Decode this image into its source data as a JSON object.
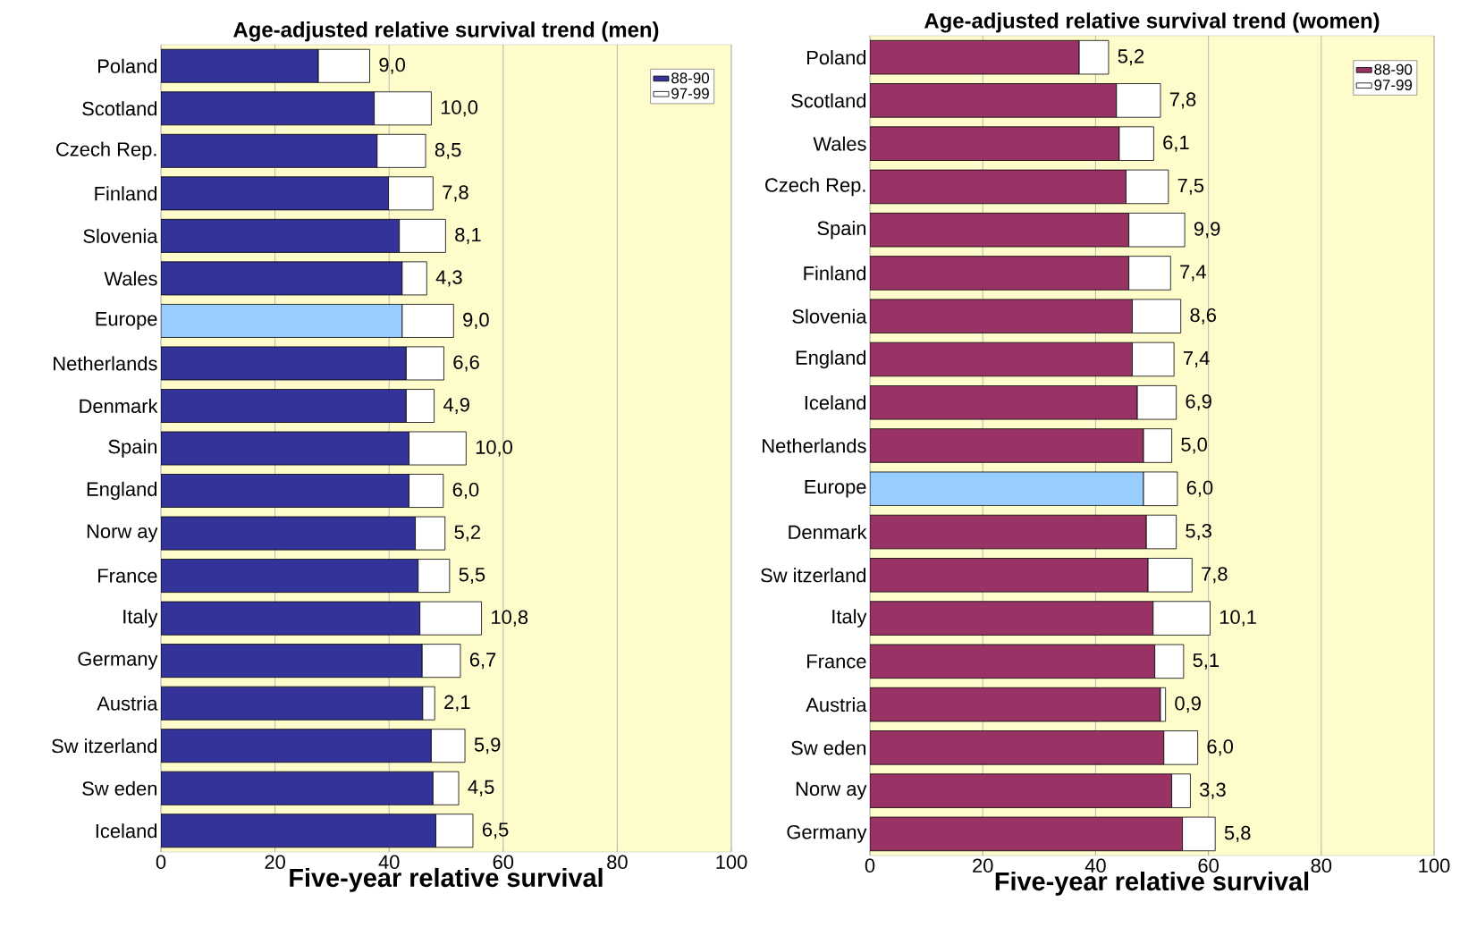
{
  "chart_data": [
    {
      "type": "bar",
      "orientation": "horizontal",
      "stacked": true,
      "title": "Age-adjusted relative survival trend (men)",
      "xlabel": "Five-year relative survival",
      "categories": [
        "Poland",
        "Scotland",
        "Czech Rep.",
        "Finland",
        "Slovenia",
        "Wales",
        "Europe",
        "Netherlands",
        "Denmark",
        "Spain",
        "England",
        "Norw ay",
        "France",
        "Italy",
        "Germany",
        "Austria",
        "Sw itzerland",
        "Sw eden",
        "Iceland"
      ],
      "series": [
        {
          "name": "88-90",
          "colors": [
            "#333399",
            "#333399",
            "#333399",
            "#333399",
            "#333399",
            "#333399",
            "#99ccff",
            "#333399",
            "#333399",
            "#333399",
            "#333399",
            "#333399",
            "#333399",
            "#333399",
            "#333399",
            "#333399",
            "#333399",
            "#333399",
            "#333399"
          ],
          "values": [
            27.6,
            37.4,
            37.9,
            39.9,
            41.8,
            42.3,
            42.3,
            43.0,
            43.0,
            43.5,
            43.5,
            44.6,
            45.1,
            45.4,
            45.8,
            45.9,
            47.4,
            47.7,
            48.2
          ]
        },
        {
          "name": "97-99",
          "color": "#ffffff",
          "values": [
            9.0,
            10.0,
            8.5,
            7.8,
            8.1,
            4.3,
            9.0,
            6.6,
            4.9,
            10.0,
            6.0,
            5.2,
            5.5,
            10.8,
            6.7,
            2.1,
            5.9,
            4.5,
            6.5
          ],
          "value_labels": [
            "9,0",
            "10,0",
            "8,5",
            "7,8",
            "8,1",
            "4,3",
            "9,0",
            "6,6",
            "4,9",
            "10,0",
            "6,0",
            "5,2",
            "5,5",
            "10,8",
            "6,7",
            "2,1",
            "5,9",
            "4,5",
            "6,5"
          ]
        }
      ],
      "xlim": [
        0,
        100
      ],
      "xticks": [
        0,
        20,
        40,
        60,
        80,
        100
      ],
      "grid": "x",
      "legend": "top right"
    },
    {
      "type": "bar",
      "orientation": "horizontal",
      "stacked": true,
      "title": "Age-adjusted relative survival trend (women)",
      "xlabel": "Five-year relative survival",
      "categories": [
        "Poland",
        "Scotland",
        "Wales",
        "Czech Rep.",
        "Spain",
        "Finland",
        "Slovenia",
        "England",
        "Iceland",
        "Netherlands",
        "Europe",
        "Denmark",
        "Sw itzerland",
        "Italy",
        "France",
        "Austria",
        "Sw eden",
        "Norw ay",
        "Germany"
      ],
      "series": [
        {
          "name": "88-90",
          "colors": [
            "#993366",
            "#993366",
            "#993366",
            "#993366",
            "#993366",
            "#993366",
            "#993366",
            "#993366",
            "#993366",
            "#993366",
            "#99ccff",
            "#993366",
            "#993366",
            "#993366",
            "#993366",
            "#993366",
            "#993366",
            "#993366",
            "#993366"
          ],
          "values": [
            37.1,
            43.7,
            44.2,
            45.4,
            45.9,
            45.9,
            46.5,
            46.5,
            47.4,
            48.5,
            48.5,
            49.0,
            49.3,
            50.2,
            50.5,
            51.5,
            52.1,
            53.5,
            55.4
          ]
        },
        {
          "name": "97-99",
          "color": "#ffffff",
          "values": [
            5.2,
            7.8,
            6.1,
            7.5,
            9.9,
            7.4,
            8.6,
            7.4,
            6.9,
            5.0,
            6.0,
            5.3,
            7.8,
            10.1,
            5.1,
            0.9,
            6.0,
            3.3,
            5.8
          ],
          "value_labels": [
            "5,2",
            "7,8",
            "6,1",
            "7,5",
            "9,9",
            "7,4",
            "8,6",
            "7,4",
            "6,9",
            "5,0",
            "6,0",
            "5,3",
            "7,8",
            "10,1",
            "5,1",
            "0,9",
            "6,0",
            "3,3",
            "5,8"
          ]
        }
      ],
      "xlim": [
        0,
        100
      ],
      "xticks": [
        0,
        20,
        40,
        60,
        80,
        100
      ],
      "grid": "x",
      "legend": "top right"
    }
  ]
}
